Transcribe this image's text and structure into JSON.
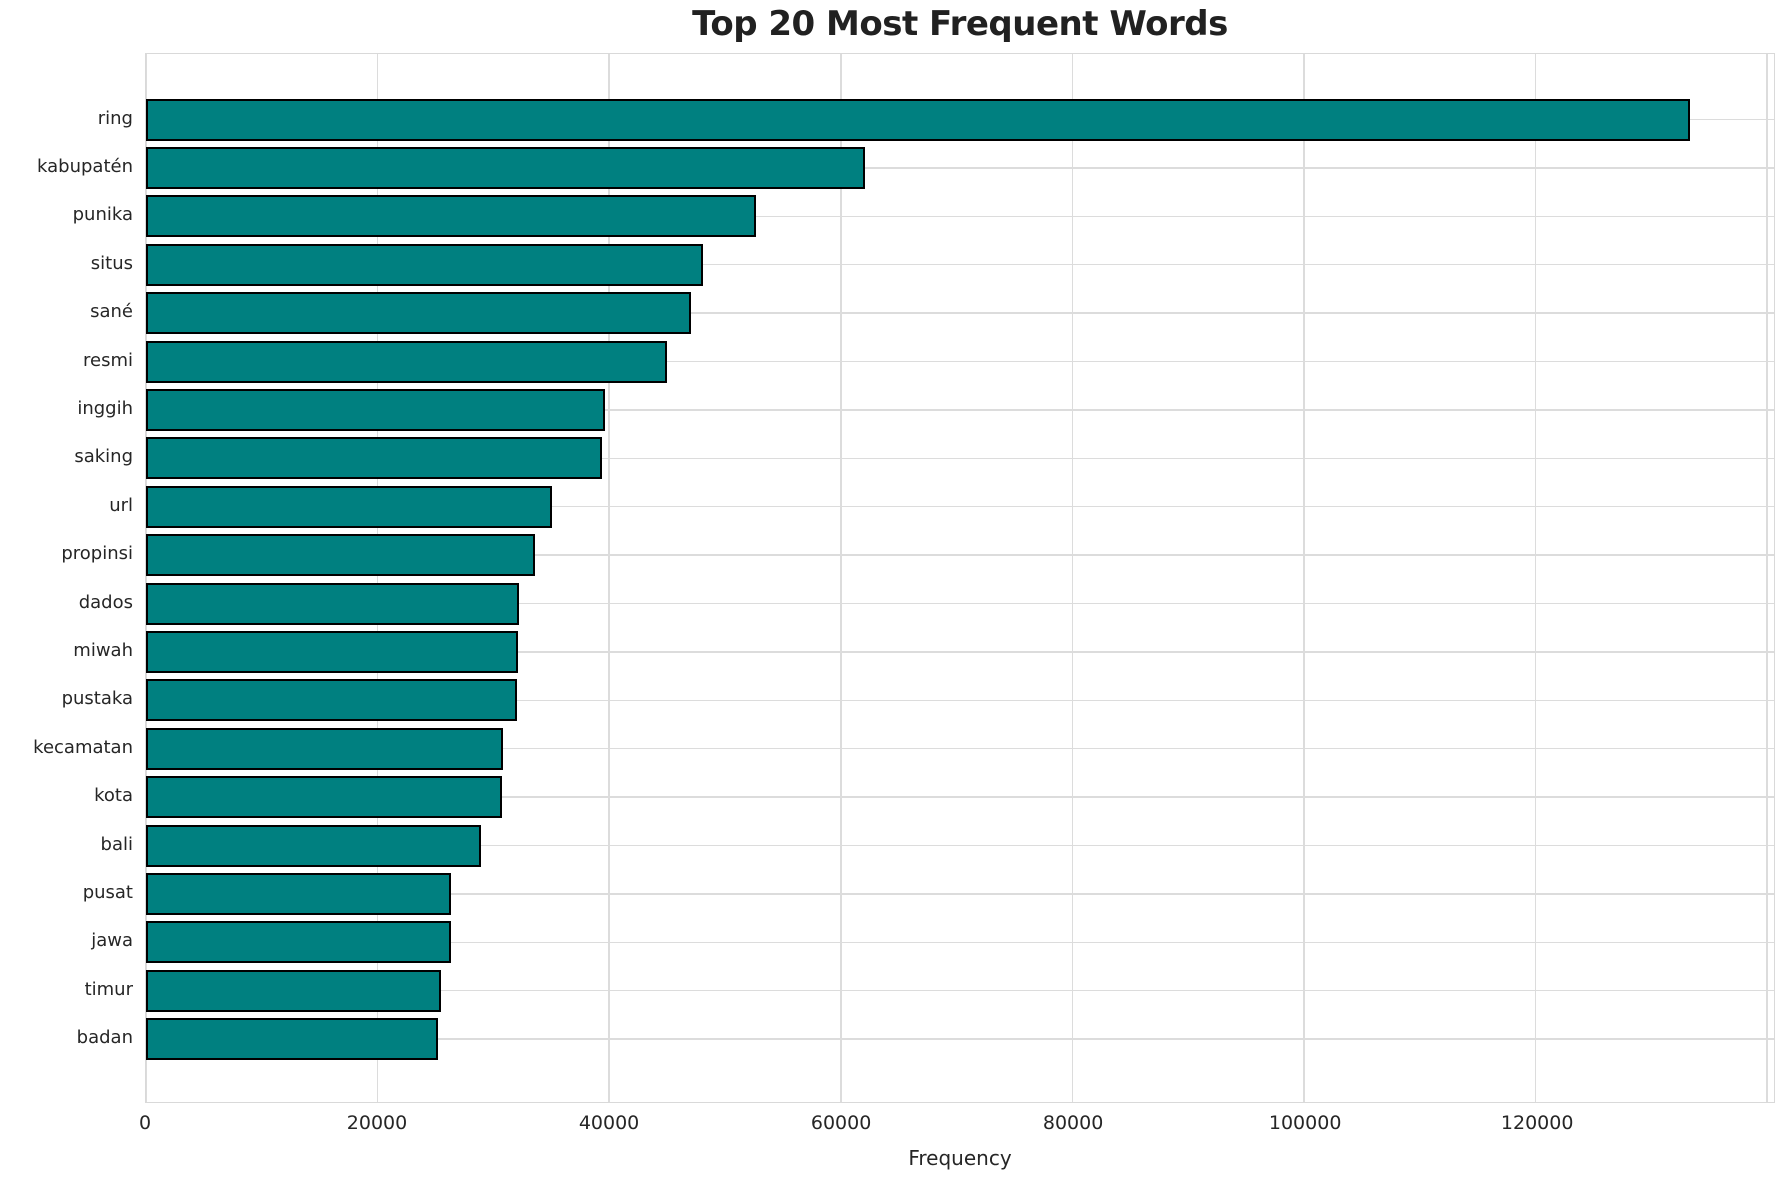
{
  "chart_data": {
    "type": "bar",
    "orientation": "horizontal",
    "title": "Top 20 Most Frequent Words",
    "xlabel": "Frequency",
    "ylabel": "",
    "categories": [
      "ring",
      "kabupatén",
      "punika",
      "situs",
      "sané",
      "resmi",
      "inggih",
      "saking",
      "url",
      "propinsi",
      "dados",
      "miwah",
      "pustaka",
      "kecamatan",
      "kota",
      "bali",
      "pusat",
      "jawa",
      "timur",
      "badan"
    ],
    "values": [
      133300,
      62100,
      52700,
      48100,
      47100,
      45000,
      39650,
      39400,
      35100,
      33550,
      32250,
      32100,
      32050,
      30800,
      30750,
      28900,
      26350,
      26300,
      25450,
      25200
    ],
    "xlim": [
      0,
      140500
    ],
    "xticks": [
      {
        "value": 0,
        "label": "0"
      },
      {
        "value": 20000,
        "label": "20000"
      },
      {
        "value": 40000,
        "label": "40000"
      },
      {
        "value": 60000,
        "label": "60000"
      },
      {
        "value": 80000,
        "label": "80000"
      },
      {
        "value": 100000,
        "label": "100000"
      },
      {
        "value": 120000,
        "label": "120000"
      },
      {
        "value": 140000,
        "label": ""
      }
    ],
    "grid": true,
    "legend": false,
    "colors": {
      "bar_fill": "#008080",
      "bar_edge": "#000000",
      "gridline": "#dcdcdc",
      "spine": "#d9d9d9",
      "text": "#262626",
      "background": "#ffffff"
    }
  }
}
